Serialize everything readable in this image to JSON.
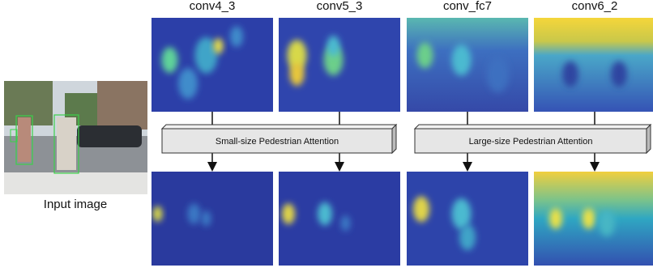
{
  "input_label": "Input image",
  "feature_maps": [
    {
      "label": "conv4_3"
    },
    {
      "label": "conv5_3"
    },
    {
      "label": "conv_fc7"
    },
    {
      "label": "conv6_2"
    }
  ],
  "attention_modules": [
    {
      "label": "Small-size Pedestrian Attention"
    },
    {
      "label": "Large-size Pedestrian Attention"
    }
  ]
}
